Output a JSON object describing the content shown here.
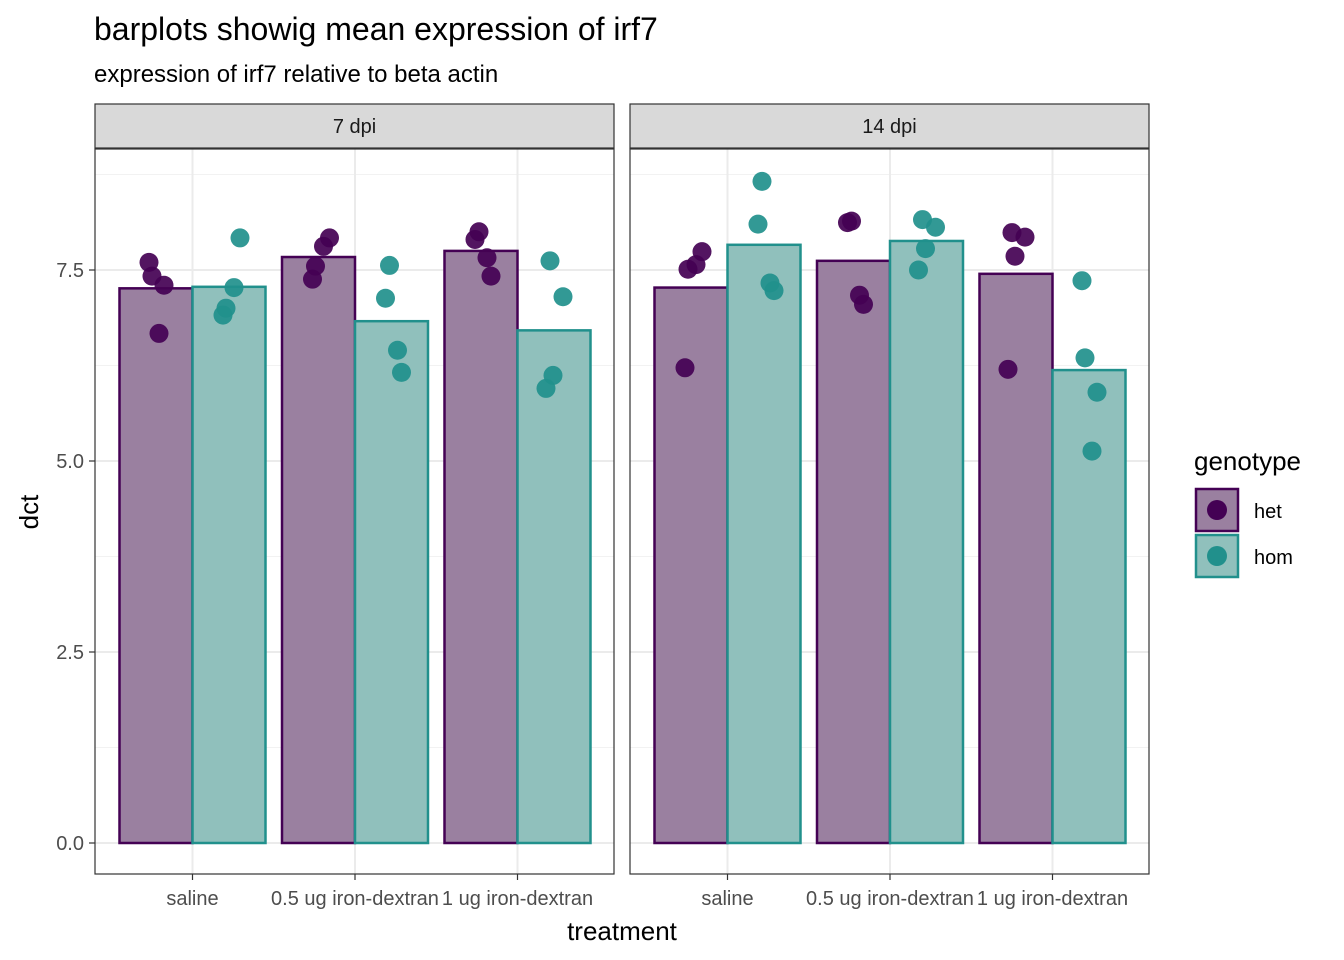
{
  "chart_data": {
    "type": "bar",
    "title": "barplots showig mean expression of irf7",
    "subtitle": "expression of irf7 relative to beta actin",
    "xlabel": "treatment",
    "ylabel": "dct",
    "ylim": [
      -0.8,
      9.0
    ],
    "yticks": [
      "0.0",
      "2.5",
      "5.0",
      "7.5"
    ],
    "ytick_values": [
      0,
      2.5,
      5,
      7.5
    ],
    "categories": [
      "saline",
      "0.5 ug iron-dextran",
      "1 ug iron-dextran"
    ],
    "grid": true,
    "legend": {
      "title": "genotype",
      "position": "right",
      "items": [
        {
          "label": "het",
          "color": "#440154"
        },
        {
          "label": "hom",
          "color": "#21908C"
        }
      ]
    },
    "facets": [
      {
        "label": "7 dpi",
        "series": [
          {
            "name": "het",
            "values": [
              7.26,
              7.67,
              7.75
            ],
            "points": [
              [
                7.6,
                7.42,
                7.3,
                6.67
              ],
              [
                7.92,
                7.81,
                7.55,
                7.38
              ],
              [
                8.0,
                7.9,
                7.66,
                7.42
              ]
            ]
          },
          {
            "name": "hom",
            "values": [
              7.28,
              6.83,
              6.71
            ],
            "points": [
              [
                7.92,
                7.27,
                7.0,
                6.91
              ],
              [
                7.56,
                7.13,
                6.45,
                6.16
              ],
              [
                7.62,
                7.15,
                6.12,
                5.95
              ]
            ]
          }
        ]
      },
      {
        "label": "14 dpi",
        "series": [
          {
            "name": "het",
            "values": [
              7.27,
              7.62,
              7.45
            ],
            "points": [
              [
                7.74,
                7.57,
                7.51,
                6.22
              ],
              [
                8.14,
                8.12,
                7.17,
                7.05
              ],
              [
                7.99,
                7.93,
                7.68,
                6.2
              ]
            ]
          },
          {
            "name": "hom",
            "values": [
              7.83,
              7.88,
              6.19
            ],
            "points": [
              [
                8.66,
                8.1,
                7.33,
                7.23
              ],
              [
                8.16,
                8.06,
                7.78,
                7.5
              ],
              [
                7.36,
                6.35,
                5.9,
                5.13
              ]
            ]
          }
        ]
      }
    ],
    "colors": {
      "het_fill": "#9A80A0",
      "het_stroke": "#440154",
      "het_point": "#440154",
      "hom_fill": "#90C0BC",
      "hom_stroke": "#21908C",
      "hom_point": "#21908C",
      "strip_bg": "#D9D9D9",
      "grid": "#EBEBEB"
    }
  }
}
